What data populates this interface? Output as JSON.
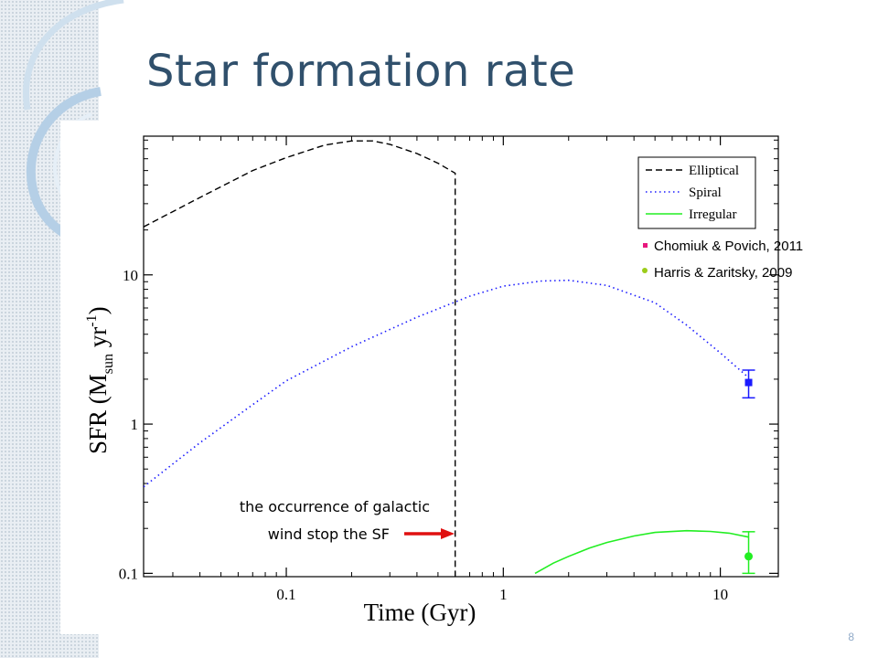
{
  "slide": {
    "title": "Star formation rate",
    "page_number": "8"
  },
  "colors": {
    "title": "#30506c",
    "elliptical": "#000000",
    "spiral": "#1a1aff",
    "irregular": "#22ee22",
    "chomiuk_bullet": "#e8177d",
    "harris_bullet": "#9ccc1a",
    "arrow": "#e01010"
  },
  "annotation": {
    "line1": "the occurrence of galactic",
    "line2": "wind stop the SF"
  },
  "references": {
    "chomiuk": "Chomiuk & Povich, 2011",
    "harris": "Harris & Zaritsky, 2009"
  },
  "chart_data": {
    "type": "line",
    "xlabel": "Time  (Gyr)",
    "ylabel": "SFR  (M",
    "ylabel_sub": "sun",
    "ylabel_unit": " yr",
    "ylabel_sup": "-1",
    "ylabel_close": ")",
    "xscale": "log",
    "yscale": "log",
    "xlim": [
      0.022,
      18.5
    ],
    "ylim": [
      0.095,
      85
    ],
    "x_ticks": [
      {
        "value": 0.1,
        "label": "0.1"
      },
      {
        "value": 1,
        "label": "1"
      },
      {
        "value": 10,
        "label": "10"
      }
    ],
    "y_ticks": [
      {
        "value": 0.1,
        "label": "0.1"
      },
      {
        "value": 1,
        "label": "1"
      },
      {
        "value": 10,
        "label": "10"
      }
    ],
    "grid": false,
    "legend_position": "top-right",
    "series": [
      {
        "name": "Elliptical",
        "style": "dashed",
        "x": [
          0.022,
          0.04,
          0.07,
          0.1,
          0.15,
          0.2,
          0.25,
          0.3,
          0.4,
          0.5,
          0.6,
          0.6
        ],
        "y": [
          21,
          33,
          50,
          61,
          74,
          79,
          79,
          75,
          65,
          56,
          48,
          0.095
        ]
      },
      {
        "name": "Spiral",
        "style": "dotted",
        "x": [
          0.022,
          0.04,
          0.07,
          0.1,
          0.2,
          0.4,
          0.7,
          1.0,
          1.5,
          2.0,
          3.0,
          5.0,
          7.0,
          10.0,
          13.5
        ],
        "y": [
          0.38,
          0.75,
          1.35,
          1.95,
          3.3,
          5.2,
          7.2,
          8.4,
          9.1,
          9.2,
          8.5,
          6.5,
          4.6,
          3.0,
          2.05
        ]
      },
      {
        "name": "Irregular",
        "style": "solid",
        "x": [
          1.4,
          1.7,
          2.0,
          2.5,
          3.0,
          4.0,
          5.0,
          7.0,
          9.0,
          11.0,
          13.5
        ],
        "y": [
          0.1,
          0.117,
          0.13,
          0.148,
          0.161,
          0.178,
          0.188,
          0.193,
          0.191,
          0.186,
          0.175
        ]
      }
    ],
    "observations": [
      {
        "name": "Chomiuk & Povich, 2011",
        "x": 13.5,
        "y": 1.9,
        "err_low": 1.5,
        "err_high": 2.3
      },
      {
        "name": "Harris & Zaritsky, 2009",
        "x": 13.5,
        "y": 0.13,
        "err_low": 0.1,
        "err_high": 0.19
      }
    ]
  }
}
